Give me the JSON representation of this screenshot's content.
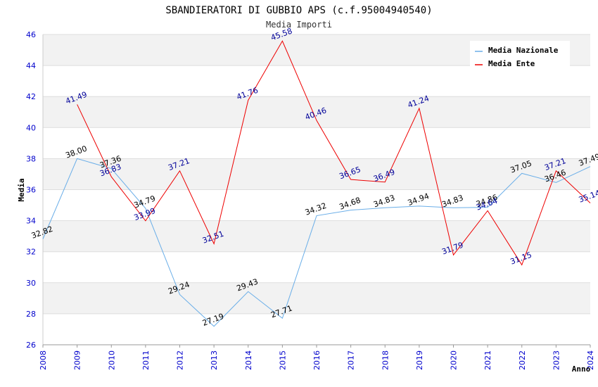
{
  "chart_data": {
    "type": "line",
    "title": "SBANDIERATORI DI GUBBIO APS (c.f.95004940540)",
    "subtitle": "Media Importi",
    "xlabel": "Anno",
    "ylabel": "Media",
    "ylim": [
      26,
      46
    ],
    "ytick_step": 2,
    "x": [
      2008,
      2009,
      2010,
      2011,
      2012,
      2013,
      2014,
      2015,
      2016,
      2017,
      2018,
      2019,
      2020,
      2021,
      2022,
      2023,
      2024
    ],
    "legend_position": "top-right",
    "grid": true,
    "series": [
      {
        "name": "Media Nazionale",
        "color": "#6aaee8",
        "label_color": "#000000",
        "values": [
          32.82,
          38.0,
          37.36,
          34.79,
          29.24,
          27.19,
          29.43,
          27.71,
          34.32,
          34.68,
          34.83,
          34.94,
          34.83,
          34.86,
          37.05,
          36.46,
          37.49
        ],
        "labels": [
          "32.82",
          "38.00",
          "37.36",
          "34.79",
          "29.24",
          "27.19",
          "29.43",
          "27.71",
          "34.32",
          "34.68",
          "34.83",
          "34.94",
          "34.83",
          "34.86",
          "37.05",
          "36.46",
          "37.49"
        ]
      },
      {
        "name": "Media Ente",
        "color": "#ee0000",
        "label_color": "#000099",
        "values": [
          null,
          41.49,
          36.83,
          33.99,
          37.21,
          32.51,
          41.76,
          45.58,
          40.46,
          36.65,
          36.49,
          41.24,
          31.79,
          34.64,
          31.15,
          37.21,
          35.14
        ],
        "labels": [
          "",
          "41.49",
          "36.83",
          "33.99",
          "37.21",
          "32.51",
          "41.76",
          "45.58",
          "40.46",
          "36.65",
          "36.49",
          "41.24",
          "31.79",
          "34.64",
          "31.15",
          "37.21",
          "35.14"
        ]
      }
    ]
  }
}
